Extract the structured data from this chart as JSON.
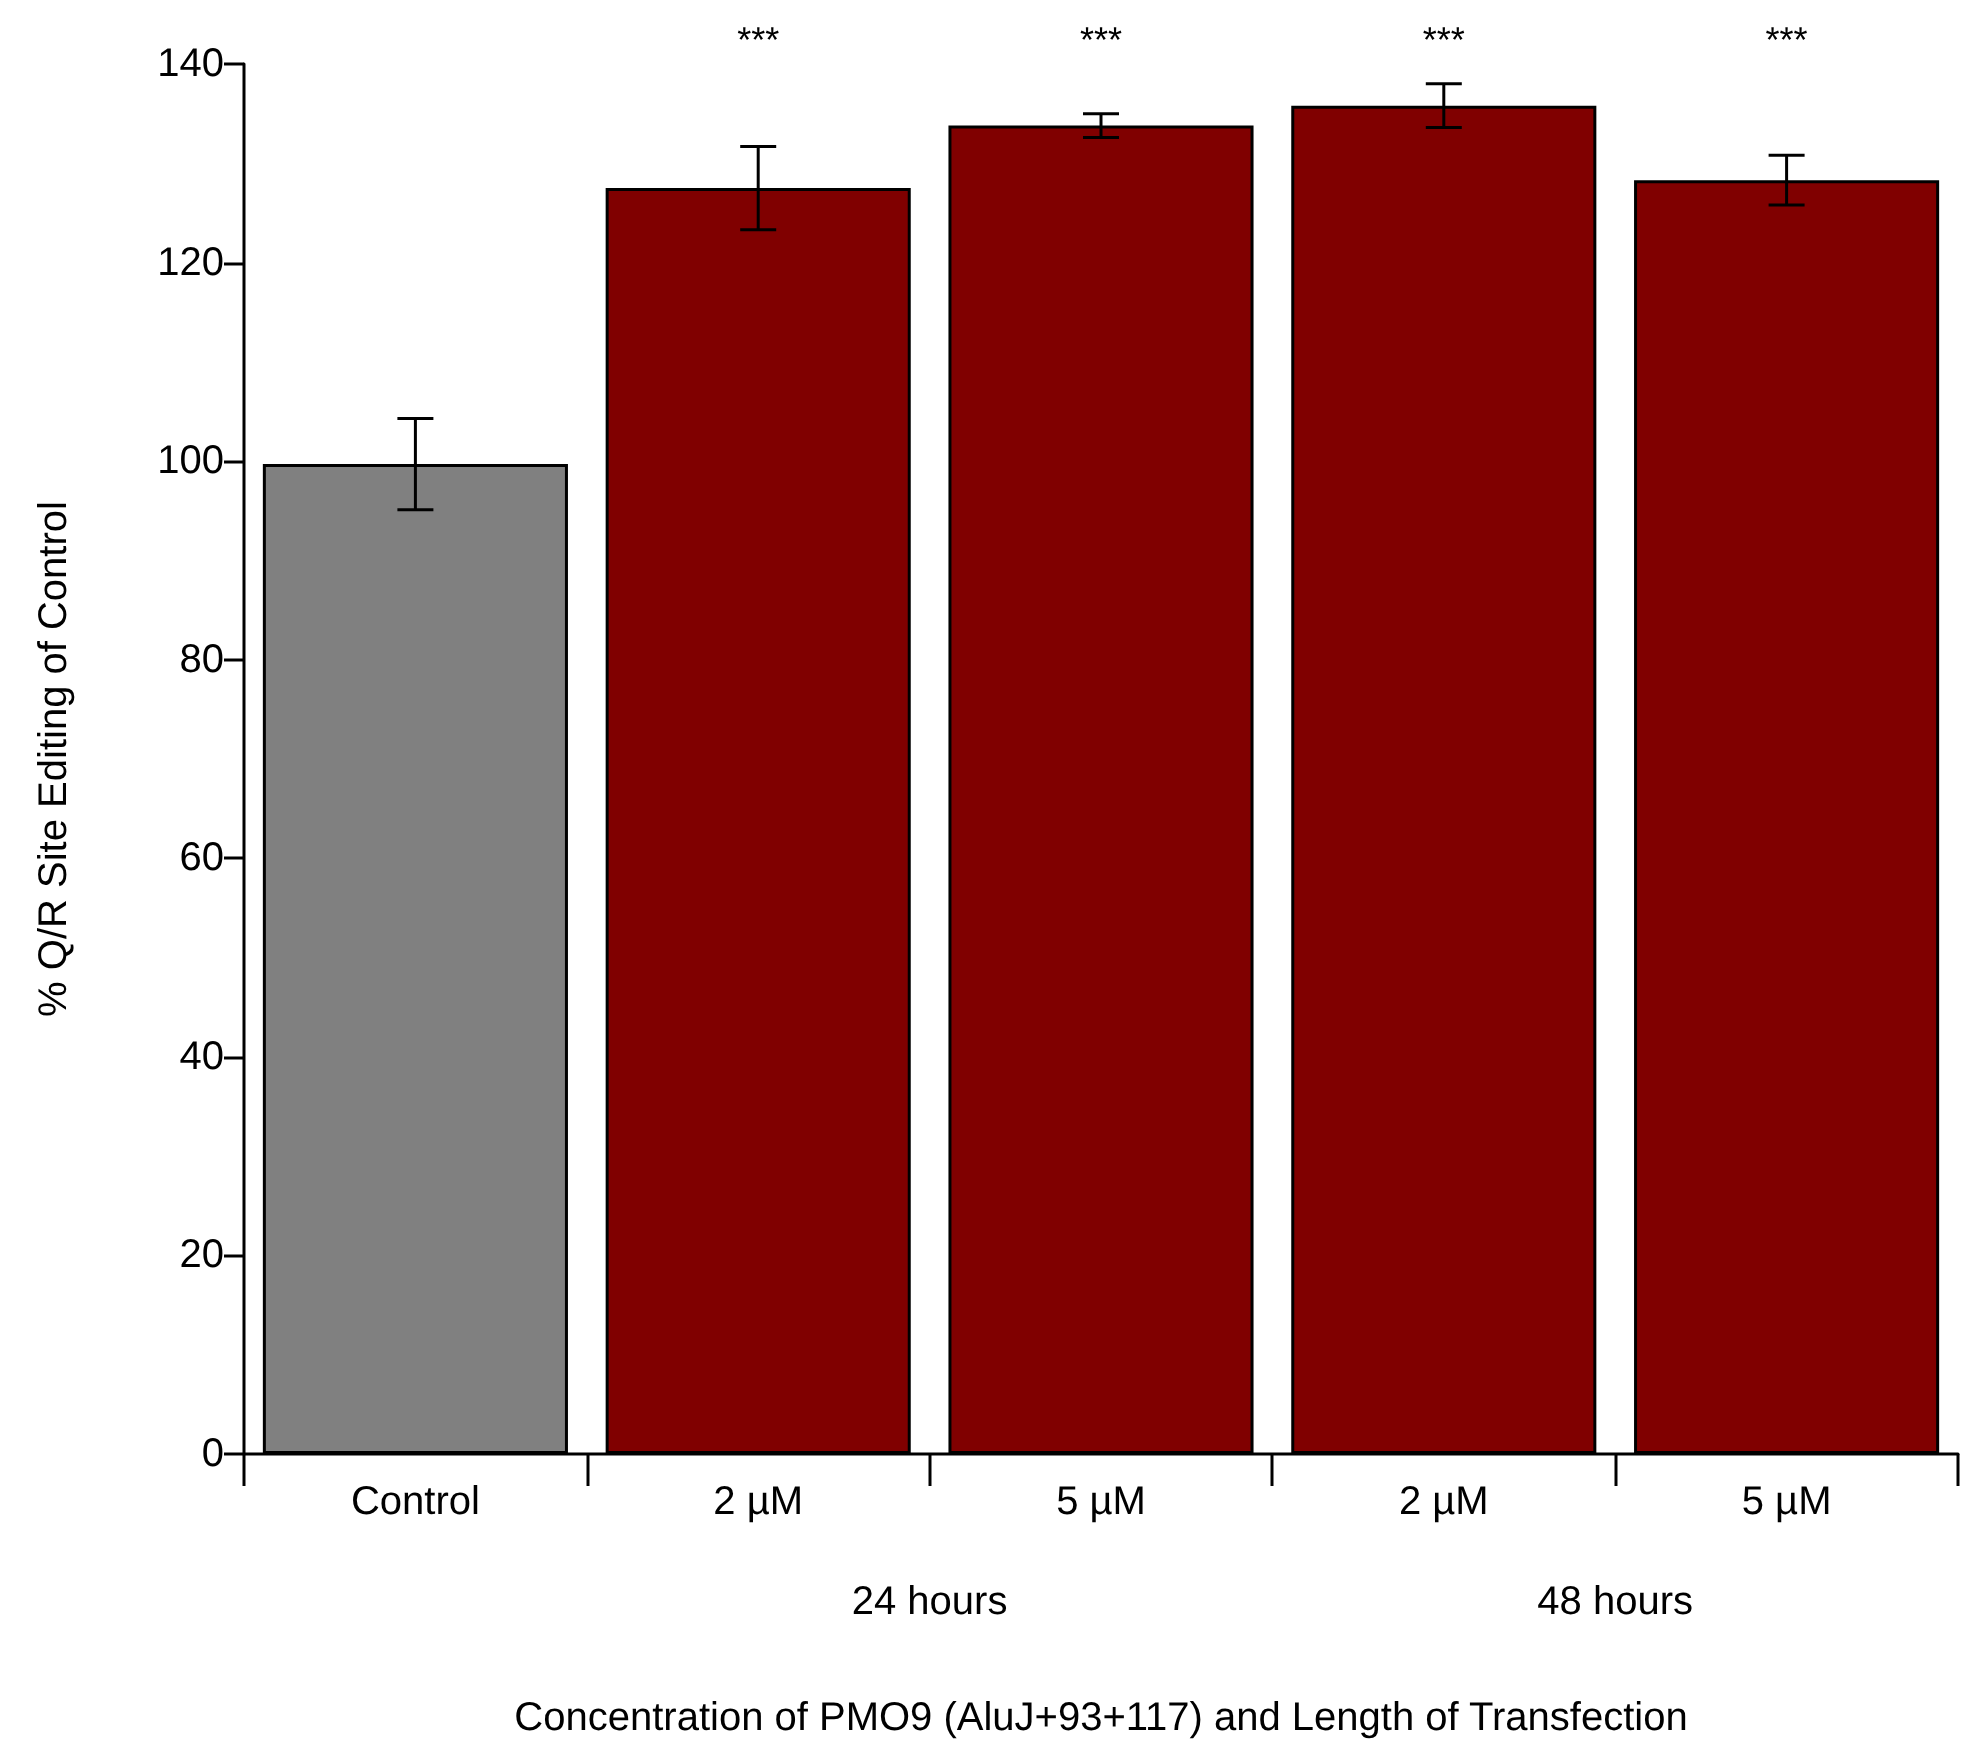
{
  "chart_data": {
    "type": "bar",
    "xlabel": "Concentration of PMO9 (AluJ+93+117) and Length of Transfection",
    "ylabel": "% Q/R Site Editing of Control",
    "categories": [
      "Control",
      "2 µM",
      "5 µM",
      "2 µM",
      "5 µM"
    ],
    "values": [
      99.7,
      127.5,
      133.8,
      135.8,
      128.3
    ],
    "errors": [
      4.6,
      4.2,
      1.2,
      2.2,
      2.5
    ],
    "colors": [
      "#808080",
      "#800000",
      "#800000",
      "#800000",
      "#800000"
    ],
    "ylim": [
      0,
      140
    ],
    "yticks": [
      0,
      20,
      40,
      60,
      80,
      100,
      120,
      140
    ],
    "grid": false,
    "annotations": [
      "***",
      "***",
      "***",
      "***",
      "24 hours",
      "48 hours"
    ]
  }
}
